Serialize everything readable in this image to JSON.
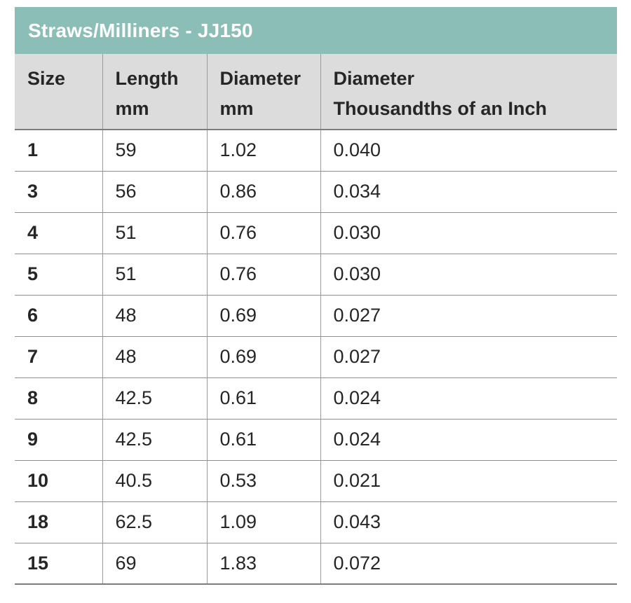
{
  "title": "Straws/Milliners - JJ150",
  "colors": {
    "teal": "#8abeb7",
    "header_gray": "#dcdcdc",
    "grid_line": "#9b9b9b",
    "row_line": "#8f8f8f",
    "strong_line": "#7d7d7d",
    "text": "#262626",
    "title_text": "#ffffff"
  },
  "table": {
    "columns": [
      {
        "line1": "Size",
        "line2": ""
      },
      {
        "line1": "Length",
        "line2": "mm"
      },
      {
        "line1": "Diameter",
        "line2": "mm"
      },
      {
        "line1": "Diameter",
        "line2": "Thousandths of an Inch"
      }
    ],
    "rows": [
      {
        "size": "1",
        "length_mm": "59",
        "diameter_mm": "1.02",
        "diameter_thou_inch": "0.040"
      },
      {
        "size": "3",
        "length_mm": "56",
        "diameter_mm": "0.86",
        "diameter_thou_inch": "0.034"
      },
      {
        "size": "4",
        "length_mm": "51",
        "diameter_mm": "0.76",
        "diameter_thou_inch": "0.030"
      },
      {
        "size": "5",
        "length_mm": "51",
        "diameter_mm": "0.76",
        "diameter_thou_inch": "0.030"
      },
      {
        "size": "6",
        "length_mm": "48",
        "diameter_mm": "0.69",
        "diameter_thou_inch": "0.027"
      },
      {
        "size": "7",
        "length_mm": "48",
        "diameter_mm": "0.69",
        "diameter_thou_inch": "0.027"
      },
      {
        "size": "8",
        "length_mm": "42.5",
        "diameter_mm": "0.61",
        "diameter_thou_inch": "0.024"
      },
      {
        "size": "9",
        "length_mm": "42.5",
        "diameter_mm": "0.61",
        "diameter_thou_inch": "0.024"
      },
      {
        "size": "10",
        "length_mm": "40.5",
        "diameter_mm": "0.53",
        "diameter_thou_inch": "0.021"
      },
      {
        "size": "18",
        "length_mm": "62.5",
        "diameter_mm": "1.09",
        "diameter_thou_inch": "0.043"
      },
      {
        "size": "15",
        "length_mm": "69",
        "diameter_mm": "1.83",
        "diameter_thou_inch": "0.072"
      }
    ]
  }
}
